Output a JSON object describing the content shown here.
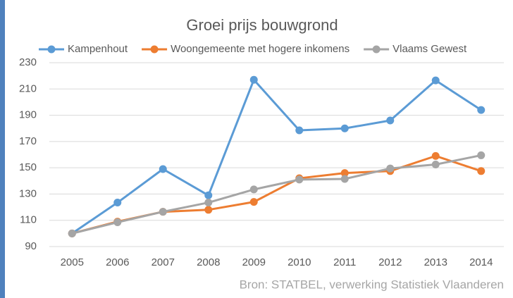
{
  "chart_data": {
    "type": "line",
    "title": "Groei prijs bouwgrond",
    "categories": [
      "2005",
      "2006",
      "2007",
      "2008",
      "2009",
      "2010",
      "2011",
      "2012",
      "2013",
      "2014"
    ],
    "series": [
      {
        "name": "Kampenhout",
        "color": "#5b9bd5",
        "values": [
          100,
          123.5,
          149,
          129,
          217,
          178.5,
          180,
          186,
          216.5,
          194
        ]
      },
      {
        "name": "Woongemeente met hogere inkomens",
        "color": "#ed7d31",
        "values": [
          100,
          109,
          116.5,
          118,
          124,
          142,
          146,
          147.5,
          159,
          147.5
        ]
      },
      {
        "name": "Vlaams Gewest",
        "color": "#a5a5a5",
        "values": [
          100,
          108.5,
          116.5,
          123.5,
          133.5,
          141,
          141.5,
          149.5,
          152.5,
          159.5
        ]
      }
    ],
    "ylim": [
      90,
      230
    ],
    "yticks": [
      90,
      110,
      130,
      150,
      170,
      190,
      210,
      230
    ],
    "grid": true,
    "legend": "top",
    "source": "Bron: STATBEL, verwerking Statistiek Vlaanderen"
  }
}
